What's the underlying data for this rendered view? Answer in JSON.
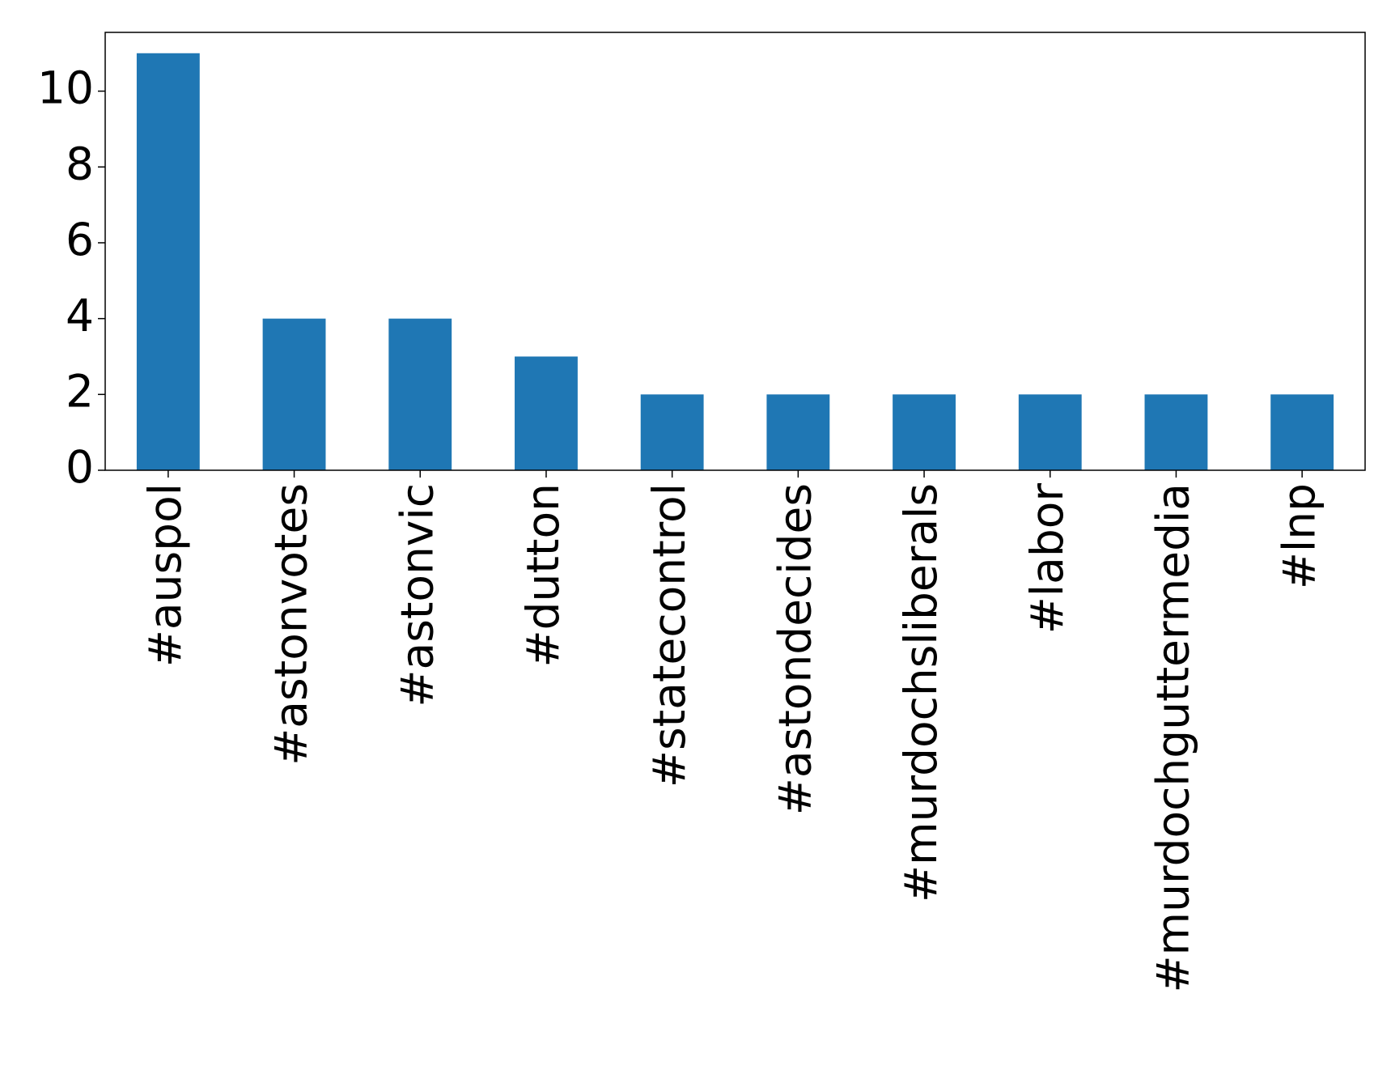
{
  "chart_data": {
    "type": "bar",
    "categories": [
      "#auspol",
      "#astonvotes",
      "#astonvic",
      "#dutton",
      "#statecontrol",
      "#astondecides",
      "#murdochsliberals",
      "#labor",
      "#murdochguttermedia",
      "#lnp"
    ],
    "values": [
      11,
      4,
      4,
      3,
      2,
      2,
      2,
      2,
      2,
      2
    ],
    "color": "#1f77b4",
    "ylim": [
      0,
      11.55
    ],
    "yticks": [
      0,
      2,
      4,
      6,
      8,
      10
    ],
    "grid": false
  }
}
